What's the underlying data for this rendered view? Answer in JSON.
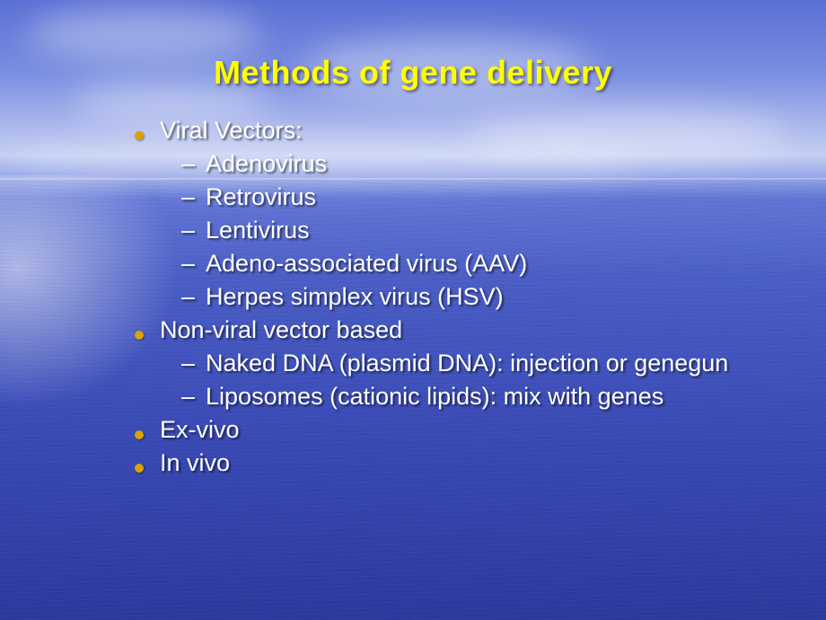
{
  "slide": {
    "title": "Methods of gene delivery",
    "title_color": "#ffff00",
    "title_fontsize": 36,
    "bullet_color": "#d9a300",
    "body_color": "#ffffff",
    "body_fontsize": 27,
    "sub_fontsize": 27,
    "background_gradient": [
      "#5a6fd4",
      "#3a4ab6"
    ],
    "items": [
      {
        "text": "Viral Vectors:",
        "sub": [
          "Adenovirus",
          "Retrovirus",
          "Lentivirus",
          "Adeno-associated virus (AAV)",
          "Herpes simplex virus (HSV)"
        ]
      },
      {
        "text": "Non-viral vector based",
        "sub": [
          "Naked DNA (plasmid DNA): injection or genegun",
          "Liposomes (cationic lipids): mix with genes"
        ]
      },
      {
        "text": "Ex-vivo",
        "sub": []
      },
      {
        "text": "In vivo",
        "sub": []
      }
    ]
  }
}
